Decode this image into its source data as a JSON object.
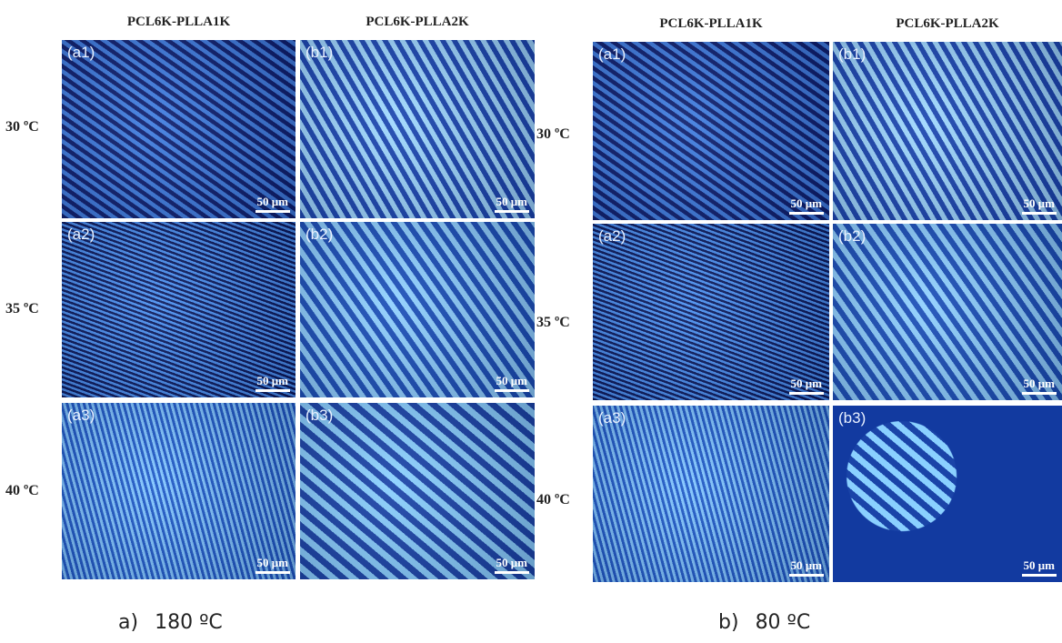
{
  "panels": [
    {
      "columns": [
        "PCL6K-PLLA1K",
        "PCL6K-PLLA2K"
      ],
      "rows": [
        {
          "label": "30 ºC",
          "images": [
            {
              "label": "(a1)",
              "scale": "50 μm"
            },
            {
              "label": "(b1)",
              "scale": "50 μm"
            }
          ]
        },
        {
          "label": "35 ºC",
          "images": [
            {
              "label": "(a2)",
              "scale": "50 μm"
            },
            {
              "label": "(b2)",
              "scale": "50 μm"
            }
          ]
        },
        {
          "label": "40 ºC",
          "images": [
            {
              "label": "(a3)",
              "scale": "50 μm"
            },
            {
              "label": "(b3)",
              "scale": "50 μm"
            }
          ]
        }
      ],
      "caption": {
        "letter": "a)",
        "text": "180 ºC"
      }
    },
    {
      "columns": [
        "PCL6K-PLLA1K",
        "PCL6K-PLLA2K"
      ],
      "rows": [
        {
          "label": "30 ºC",
          "images": [
            {
              "label": "(a1)",
              "scale": "50 μm"
            },
            {
              "label": "(b1)",
              "scale": "50 μm"
            }
          ]
        },
        {
          "label": "35 ºC",
          "images": [
            {
              "label": "(a2)",
              "scale": "50 μm"
            },
            {
              "label": "(b2)",
              "scale": "50 μm"
            }
          ]
        },
        {
          "label": "40 ºC",
          "images": [
            {
              "label": "(a3)",
              "scale": "50 μm"
            },
            {
              "label": "(b3)",
              "scale": "50 μm"
            }
          ]
        }
      ],
      "caption": {
        "letter": "b)",
        "text": "80 ºC"
      }
    }
  ]
}
